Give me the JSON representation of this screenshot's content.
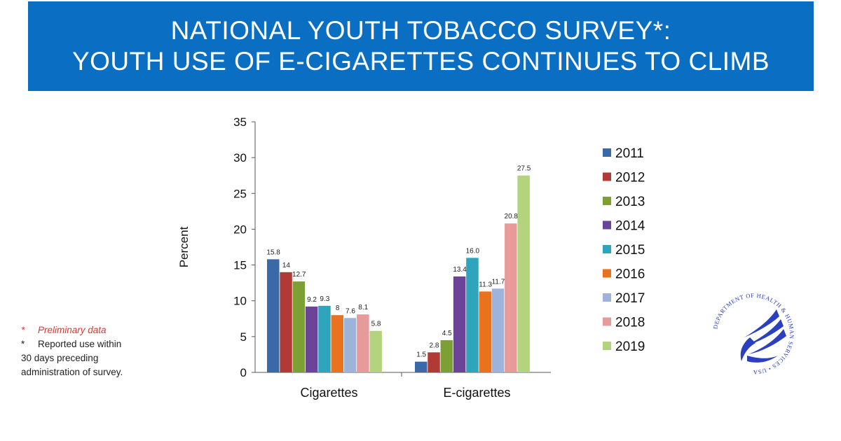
{
  "header": {
    "title_line1": "NATIONAL YOUTH TOBACCO SURVEY*:",
    "title_line2": "YOUTH USE OF E-CIGARETTES CONTINUES TO CLIMB",
    "background_color": "#0a6fc3"
  },
  "chart_data": {
    "type": "bar",
    "title": "",
    "xlabel": "",
    "ylabel": "Percent",
    "ylim": [
      0,
      35
    ],
    "yticks": [
      0,
      5,
      10,
      15,
      20,
      25,
      30,
      35
    ],
    "grid": false,
    "legend_position": "right",
    "categories": [
      "Cigarettes",
      "E-cigarettes"
    ],
    "series": [
      {
        "name": "2011",
        "color": "#3a69a8",
        "values": [
          15.8,
          1.5
        ],
        "labels": [
          "15.8",
          "1.5"
        ]
      },
      {
        "name": "2012",
        "color": "#b03a36",
        "values": [
          14,
          2.8
        ],
        "labels": [
          "14",
          "2.8"
        ]
      },
      {
        "name": "2013",
        "color": "#7da036",
        "values": [
          12.7,
          4.5
        ],
        "labels": [
          "12.7",
          "4.5"
        ]
      },
      {
        "name": "2014",
        "color": "#6b449a",
        "values": [
          9.2,
          13.4
        ],
        "labels": [
          "9.2",
          "13.4"
        ]
      },
      {
        "name": "2015",
        "color": "#2ea4bd",
        "values": [
          9.3,
          16.0
        ],
        "labels": [
          "9.3",
          "16.0"
        ]
      },
      {
        "name": "2016",
        "color": "#e8721e",
        "values": [
          8,
          11.3
        ],
        "labels": [
          "8",
          "11.3"
        ]
      },
      {
        "name": "2017",
        "color": "#9db3dc",
        "values": [
          7.6,
          11.7
        ],
        "labels": [
          "7.6",
          "11.7"
        ]
      },
      {
        "name": "2018",
        "color": "#e69a9a",
        "values": [
          8.1,
          20.8
        ],
        "labels": [
          "8.1",
          "20.8"
        ]
      },
      {
        "name": "2019",
        "color": "#b3d37f",
        "values": [
          5.8,
          27.5
        ],
        "labels": [
          "5.8",
          "27.5"
        ]
      }
    ]
  },
  "notes": {
    "star1": "*",
    "note1": "Preliminary data",
    "star2": "*",
    "note2_line1": "Reported use within",
    "note2_line2": "30 days preceding",
    "note2_line3": "administration of survey."
  },
  "seal": {
    "icon": "hhs-eagle-seal-icon",
    "ring_text": "DEPARTMENT OF HEALTH & HUMAN SERVICES • USA",
    "color": "#2b3fbf"
  }
}
